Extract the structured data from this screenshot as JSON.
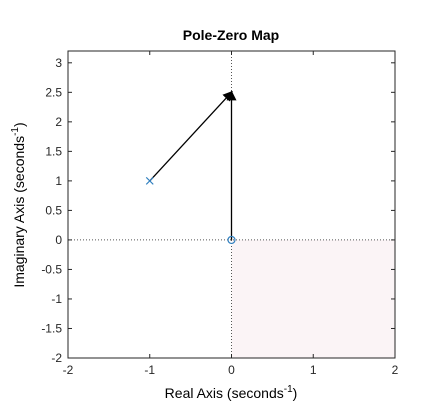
{
  "chart_data": {
    "type": "scatter",
    "title": "Pole-Zero Map",
    "xlabel": {
      "base": "Real Axis (seconds",
      "sup": "-1",
      "close": ")"
    },
    "ylabel": {
      "base": "Imaginary Axis (seconds",
      "sup": "-1",
      "close": ")"
    },
    "xlim": [
      -2,
      2
    ],
    "ylim": [
      -2,
      3.2
    ],
    "xticks": [
      "-2",
      "-1",
      "0",
      "1",
      "2"
    ],
    "yticks": [
      "-2",
      "-1.5",
      "-1",
      "-0.5",
      "0",
      "0.5",
      "1",
      "1.5",
      "2",
      "2.5",
      "3"
    ],
    "poles": [
      {
        "x": -1,
        "y": 1
      }
    ],
    "zeros": [
      {
        "x": 0,
        "y": 0
      }
    ],
    "arrows": [
      {
        "from": [
          -1,
          1
        ],
        "to": [
          0,
          2.5
        ]
      },
      {
        "from": [
          0,
          0
        ],
        "to": [
          0,
          2.5
        ]
      }
    ],
    "reference_lines": {
      "x0": true,
      "y0": true
    },
    "grid": false,
    "colors": {
      "marker": "#2f7fbf",
      "arrow": "#000000",
      "axes": "#262626",
      "shaded": "#fbf4f6"
    }
  }
}
